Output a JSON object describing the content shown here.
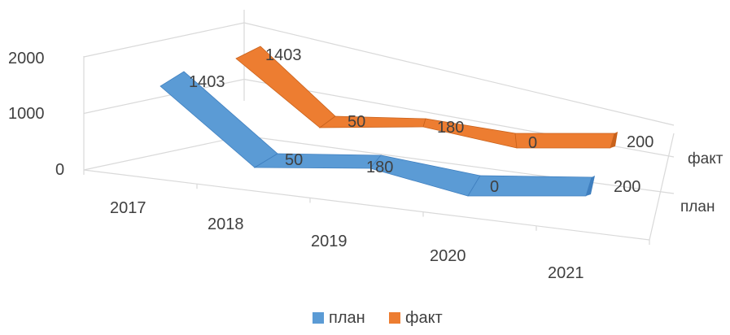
{
  "chart_data": {
    "type": "line",
    "subtype": "3d-line",
    "categories": [
      "2017",
      "2018",
      "2019",
      "2020",
      "2021"
    ],
    "series": [
      {
        "name": "план",
        "values": [
          1403,
          50,
          180,
          0,
          200
        ],
        "color": "#5b9bd5"
      },
      {
        "name": "факт",
        "values": [
          1403,
          50,
          180,
          0,
          200
        ],
        "color": "#ed7d31"
      }
    ],
    "y_ticks": [
      "0",
      "1000",
      "2000"
    ],
    "ylim": [
      0,
      2000
    ],
    "series_axis_labels": [
      "факт",
      "план"
    ],
    "data_labels": {
      "план": [
        "1403",
        "50",
        "180",
        "0",
        "200"
      ],
      "факт": [
        "1403",
        "50",
        "180",
        "0",
        "200"
      ]
    },
    "legend": {
      "position": "bottom",
      "items": [
        "план",
        "факт"
      ]
    },
    "grid": true
  }
}
